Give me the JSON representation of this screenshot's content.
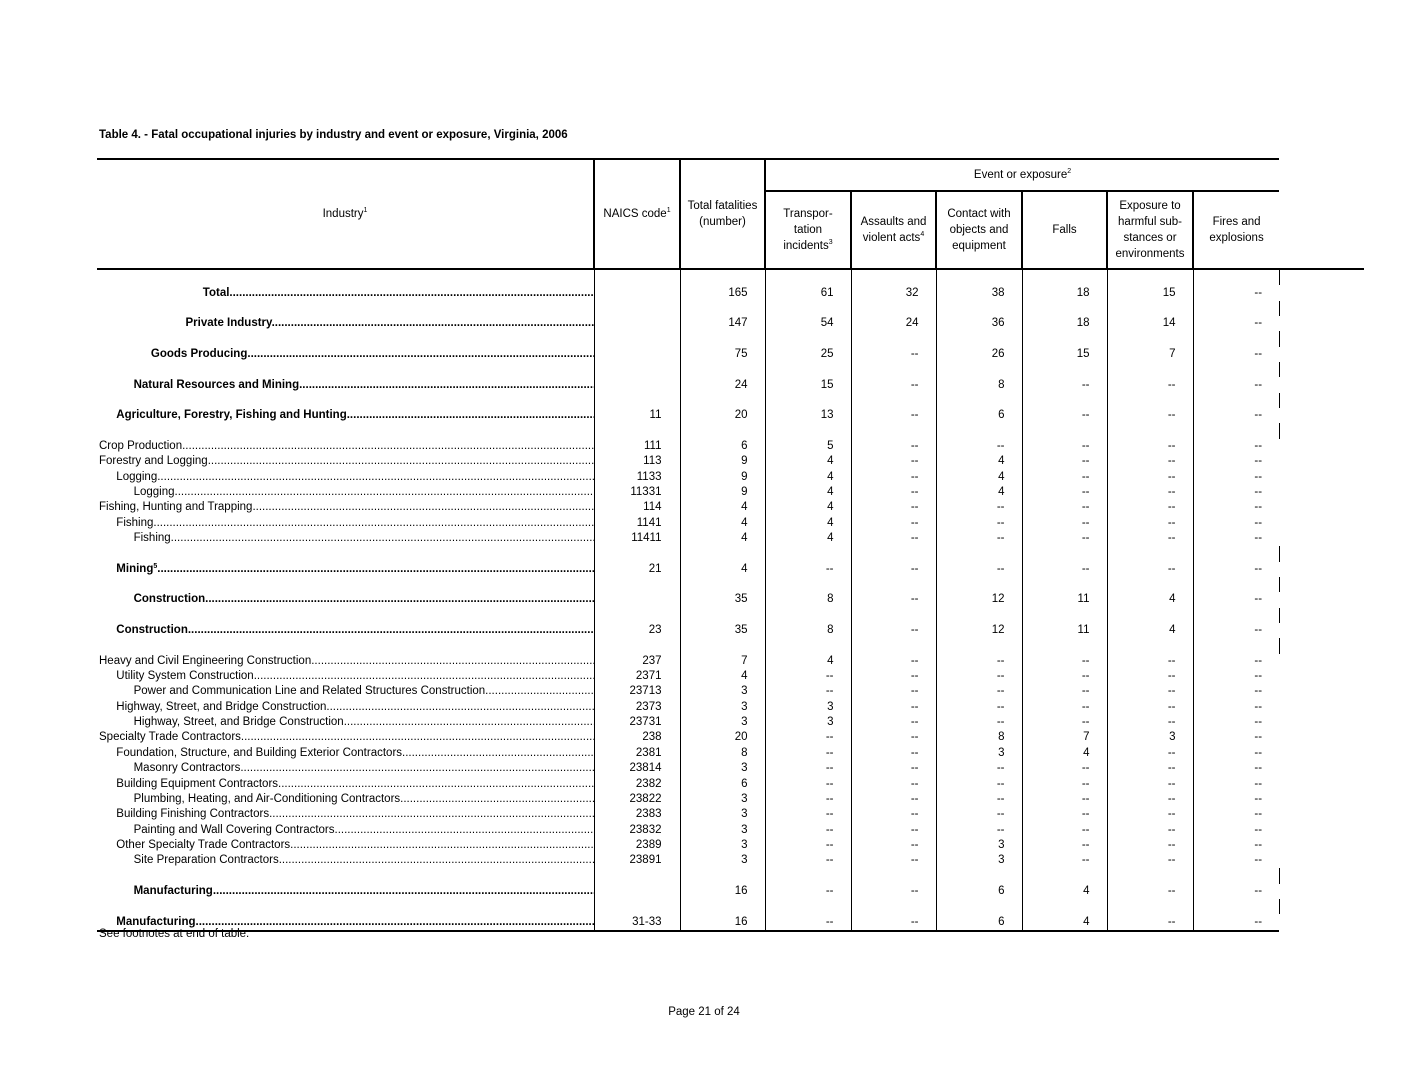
{
  "title": "Table 4. - Fatal occupational injuries by industry and event or exposure,  Virginia, 2006",
  "header": {
    "industry": "Industry",
    "industry_sup": "1",
    "naics": "NAICS code",
    "naics_sup": "1",
    "total": "Total fatalities (number)",
    "event_group": "Event or exposure",
    "event_group_sup": "2",
    "columns": [
      {
        "label": "Transpor- tation incidents",
        "sup": "3"
      },
      {
        "label": "Assaults and violent acts",
        "sup": "4"
      },
      {
        "label": "Contact with objects and equipment",
        "sup": ""
      },
      {
        "label": "Falls",
        "sup": ""
      },
      {
        "label": "Exposure to harmful sub- stances or environments",
        "sup": ""
      },
      {
        "label": "Fires and explosions",
        "sup": ""
      }
    ]
  },
  "rows": [
    {
      "blank": true
    },
    {
      "industry": "Total",
      "level": 6,
      "bold": true,
      "naics": "",
      "values": [
        "165",
        "61",
        "32",
        "38",
        "18",
        "15",
        "--"
      ]
    },
    {
      "blank": true
    },
    {
      "industry": "Private Industry",
      "level": 5,
      "bold": true,
      "naics": "",
      "values": [
        "147",
        "54",
        "24",
        "36",
        "18",
        "14",
        "--"
      ]
    },
    {
      "blank": true
    },
    {
      "industry": "Goods Producing",
      "level": 3,
      "bold": true,
      "naics": "",
      "values": [
        "75",
        "25",
        "--",
        "26",
        "15",
        "7",
        "--"
      ]
    },
    {
      "blank": true
    },
    {
      "industry": "Natural Resources and Mining",
      "level": 2,
      "bold": true,
      "naics": "",
      "values": [
        "24",
        "15",
        "--",
        "8",
        "--",
        "--",
        "--"
      ]
    },
    {
      "blank": true
    },
    {
      "industry": "Agriculture, Forestry, Fishing and Hunting",
      "level": 1,
      "bold": true,
      "naics": "11",
      "values": [
        "20",
        "13",
        "--",
        "6",
        "--",
        "--",
        "--"
      ]
    },
    {
      "blank": true
    },
    {
      "industry": "Crop Production",
      "level": 0,
      "naics": "111",
      "values": [
        "6",
        "5",
        "--",
        "--",
        "--",
        "--",
        "--"
      ]
    },
    {
      "industry": "Forestry and Logging",
      "level": 0,
      "naics": "113",
      "values": [
        "9",
        "4",
        "--",
        "4",
        "--",
        "--",
        "--"
      ]
    },
    {
      "industry": "Logging",
      "level": 1,
      "naics": "1133",
      "values": [
        "9",
        "4",
        "--",
        "4",
        "--",
        "--",
        "--"
      ]
    },
    {
      "industry": "Logging",
      "level": 2,
      "naics": "11331",
      "values": [
        "9",
        "4",
        "--",
        "4",
        "--",
        "--",
        "--"
      ]
    },
    {
      "industry": "Fishing, Hunting and Trapping",
      "level": 0,
      "naics": "114",
      "values": [
        "4",
        "4",
        "--",
        "--",
        "--",
        "--",
        "--"
      ]
    },
    {
      "industry": "Fishing",
      "level": 1,
      "naics": "1141",
      "values": [
        "4",
        "4",
        "--",
        "--",
        "--",
        "--",
        "--"
      ]
    },
    {
      "industry": "Fishing",
      "level": 2,
      "naics": "11411",
      "values": [
        "4",
        "4",
        "--",
        "--",
        "--",
        "--",
        "--"
      ]
    },
    {
      "blank": true
    },
    {
      "industry": "Mining",
      "sup": "5",
      "level": 1,
      "bold": true,
      "naics": "21",
      "values": [
        "4",
        "--",
        "--",
        "--",
        "--",
        "--",
        "--"
      ]
    },
    {
      "blank": true
    },
    {
      "industry": "Construction",
      "level": 2,
      "bold": true,
      "naics": "",
      "values": [
        "35",
        "8",
        "--",
        "12",
        "11",
        "4",
        "--"
      ]
    },
    {
      "blank": true
    },
    {
      "industry": "Construction",
      "level": 1,
      "bold": true,
      "naics": "23",
      "values": [
        "35",
        "8",
        "--",
        "12",
        "11",
        "4",
        "--"
      ]
    },
    {
      "blank": true
    },
    {
      "industry": "Heavy and Civil Engineering Construction",
      "level": 0,
      "naics": "237",
      "values": [
        "7",
        "4",
        "--",
        "--",
        "--",
        "--",
        "--"
      ]
    },
    {
      "industry": "Utility System Construction",
      "level": 1,
      "naics": "2371",
      "values": [
        "4",
        "--",
        "--",
        "--",
        "--",
        "--",
        "--"
      ]
    },
    {
      "industry": "Power and Communication Line and Related Structures Construction",
      "level": 2,
      "naics": "23713",
      "values": [
        "3",
        "--",
        "--",
        "--",
        "--",
        "--",
        "--"
      ]
    },
    {
      "industry": "Highway, Street, and Bridge Construction",
      "level": 1,
      "naics": "2373",
      "values": [
        "3",
        "3",
        "--",
        "--",
        "--",
        "--",
        "--"
      ]
    },
    {
      "industry": "Highway, Street, and Bridge Construction",
      "level": 2,
      "naics": "23731",
      "values": [
        "3",
        "3",
        "--",
        "--",
        "--",
        "--",
        "--"
      ]
    },
    {
      "industry": "Specialty Trade Contractors",
      "level": 0,
      "naics": "238",
      "values": [
        "20",
        "--",
        "--",
        "8",
        "7",
        "3",
        "--"
      ]
    },
    {
      "industry": "Foundation, Structure, and Building Exterior Contractors",
      "level": 1,
      "naics": "2381",
      "values": [
        "8",
        "--",
        "--",
        "3",
        "4",
        "--",
        "--"
      ]
    },
    {
      "industry": "Masonry Contractors",
      "level": 2,
      "naics": "23814",
      "values": [
        "3",
        "--",
        "--",
        "--",
        "--",
        "--",
        "--"
      ]
    },
    {
      "industry": "Building Equipment Contractors",
      "level": 1,
      "naics": "2382",
      "values": [
        "6",
        "--",
        "--",
        "--",
        "--",
        "--",
        "--"
      ]
    },
    {
      "industry": "Plumbing, Heating, and Air-Conditioning Contractors",
      "level": 2,
      "naics": "23822",
      "values": [
        "3",
        "--",
        "--",
        "--",
        "--",
        "--",
        "--"
      ]
    },
    {
      "industry": "Building Finishing Contractors",
      "level": 1,
      "naics": "2383",
      "values": [
        "3",
        "--",
        "--",
        "--",
        "--",
        "--",
        "--"
      ]
    },
    {
      "industry": "Painting and Wall Covering Contractors",
      "level": 2,
      "naics": "23832",
      "values": [
        "3",
        "--",
        "--",
        "--",
        "--",
        "--",
        "--"
      ]
    },
    {
      "industry": "Other Specialty Trade Contractors",
      "level": 1,
      "naics": "2389",
      "values": [
        "3",
        "--",
        "--",
        "3",
        "--",
        "--",
        "--"
      ]
    },
    {
      "industry": "Site Preparation Contractors",
      "level": 2,
      "naics": "23891",
      "values": [
        "3",
        "--",
        "--",
        "3",
        "--",
        "--",
        "--"
      ]
    },
    {
      "blank": true
    },
    {
      "industry": "Manufacturing",
      "level": 2,
      "bold": true,
      "naics": "",
      "values": [
        "16",
        "--",
        "--",
        "6",
        "4",
        "--",
        "--"
      ]
    },
    {
      "blank": true
    },
    {
      "industry": "Manufacturing",
      "level": 1,
      "bold": true,
      "naics": "31-33",
      "values": [
        "16",
        "--",
        "--",
        "6",
        "4",
        "--",
        "--"
      ]
    }
  ],
  "footnote": "See footnotes at end of table.",
  "page": "Page 21 of 24"
}
